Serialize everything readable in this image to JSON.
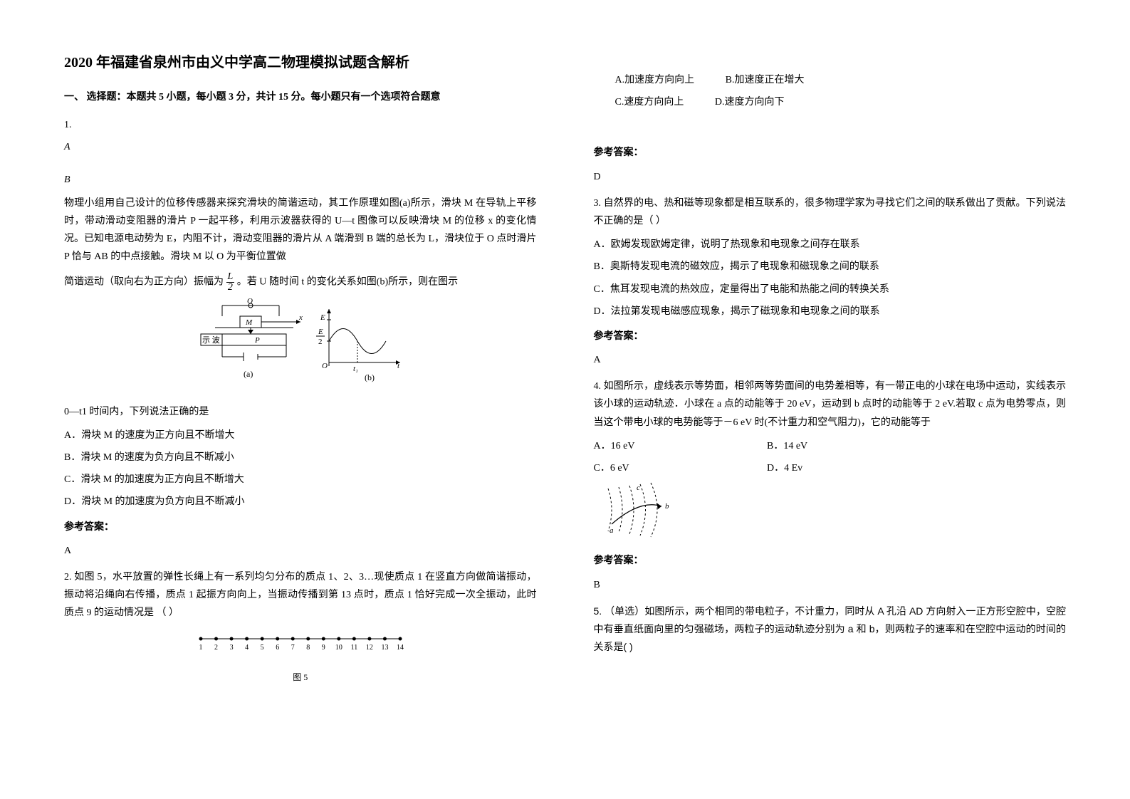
{
  "title": "2020 年福建省泉州市由义中学高二物理模拟试题含解析",
  "sectionHeading": "一、 选择题：本题共 5 小题，每小题 3 分，共计 15 分。每小题只有一个选项符合题意",
  "q1": {
    "num": "1.",
    "optA": "A",
    "optB": "B",
    "para1": "物理小组用自己设计的位移传感器来探究滑块的简谐运动，其工作原理如图(a)所示，滑块 M 在导轨上平移时，带动滑动变阻器的滑片 P 一起平移，利用示波器获得的 U—t 图像可以反映滑块 M 的位移 x 的变化情况。已知电源电动势为 E，内阻不计，滑动变阻器的滑片从 A 端滑到 B 端的总长为 L，滑块位于 O 点时滑片 P 恰与 AB 的中点接触。滑块 M 以 O 为平衡位置做",
    "para2a": "简谐运动（取向右为正方向）振幅为",
    "para2b": "。若 U 随时间 t 的变化关系如图(b)所示，则在图示",
    "para3": "0—t1 时间内，下列说法正确的是",
    "optLineA": "A．滑块 M 的速度为正方向且不断增大",
    "optLineB": "B．滑块 M 的速度为负方向且不断减小",
    "optLineC": "C．滑块 M 的加速度为正方向且不断增大",
    "optLineD": "D．滑块 M 的加速度为负方向且不断减小",
    "ansLabel": "参考答案：",
    "ans": "A"
  },
  "q2": {
    "para": "2. 如图 5，水平放置的弹性长绳上有一系列均匀分布的质点 1、2、3…现使质点 1 在竖直方向做简谐振动，振动将沿绳向右传播，质点 1 起振方向向上，当振动传播到第 13 点时，质点 1 恰好完成一次全振动，此时质点 9 的运动情况是  （      ）",
    "figCaption": "图 5",
    "optA": "A.加速度方向向上",
    "optB": "B.加速度正在增大",
    "optC": "C.速度方向向上",
    "optD": "D.速度方向向下",
    "ansLabel": "参考答案：",
    "ans": "D"
  },
  "q3": {
    "para": "3. 自然界的电、热和磁等现象都是相互联系的，很多物理学家为寻找它们之间的联系做出了贡献。下列说法不正确的是（     ）",
    "optA": "A．欧姆发现欧姆定律，说明了热现象和电现象之间存在联系",
    "optB": "B．奥斯特发现电流的磁效应，揭示了电现象和磁现象之间的联系",
    "optC": "C．焦耳发现电流的热效应，定量得出了电能和热能之间的转换关系",
    "optD": "D．法拉第发现电磁感应现象，揭示了磁现象和电现象之间的联系",
    "ansLabel": "参考答案：",
    "ans": "A"
  },
  "q4": {
    "para": "4. 如图所示，虚线表示等势面，相邻两等势面间的电势差相等，有一带正电的小球在电场中运动，实线表示该小球的运动轨迹．小球在 a 点的动能等于 20 eV，运动到 b 点时的动能等于 2 eV.若取 c 点为电势零点，则当这个带电小球的电势能等于－6 eV 时(不计重力和空气阻力)，它的动能等于",
    "optA": "A．16 eV",
    "optB": "B．14 eV",
    "optC": "C．6 eV",
    "optD": "D．4 Ev",
    "ansLabel": "参考答案：",
    "ans": "B"
  },
  "q5": {
    "para": "5. （单选）如图所示，两个相同的带电粒子，不计重力，同时从 A 孔沿 AD 方向射入一正方形空腔中，空腔中有垂直纸面向里的匀强磁场，两粒子的运动轨迹分别为 a 和 b，则两粒子的速率和在空腔中运动的时间的关系是(   )"
  },
  "labels": {
    "shibo": "示 波",
    "M": "M",
    "P": "P",
    "O": "O",
    "x": "x",
    "E": "E",
    "E2num": "E",
    "E2den": "2",
    "t1": "t₁",
    "t": "t",
    "a": "(a)",
    "b": "(b)",
    "fracLnum": "L",
    "fracLden": "2",
    "pa": "a",
    "pb": "b",
    "pc": "c"
  },
  "numbers": [
    "1",
    "2",
    "3",
    "4",
    "5",
    "6",
    "7",
    "8",
    "9",
    "10",
    "11",
    "12",
    "13",
    "14"
  ],
  "colors": {
    "text": "#000000",
    "bg": "#ffffff",
    "line": "#000000"
  }
}
